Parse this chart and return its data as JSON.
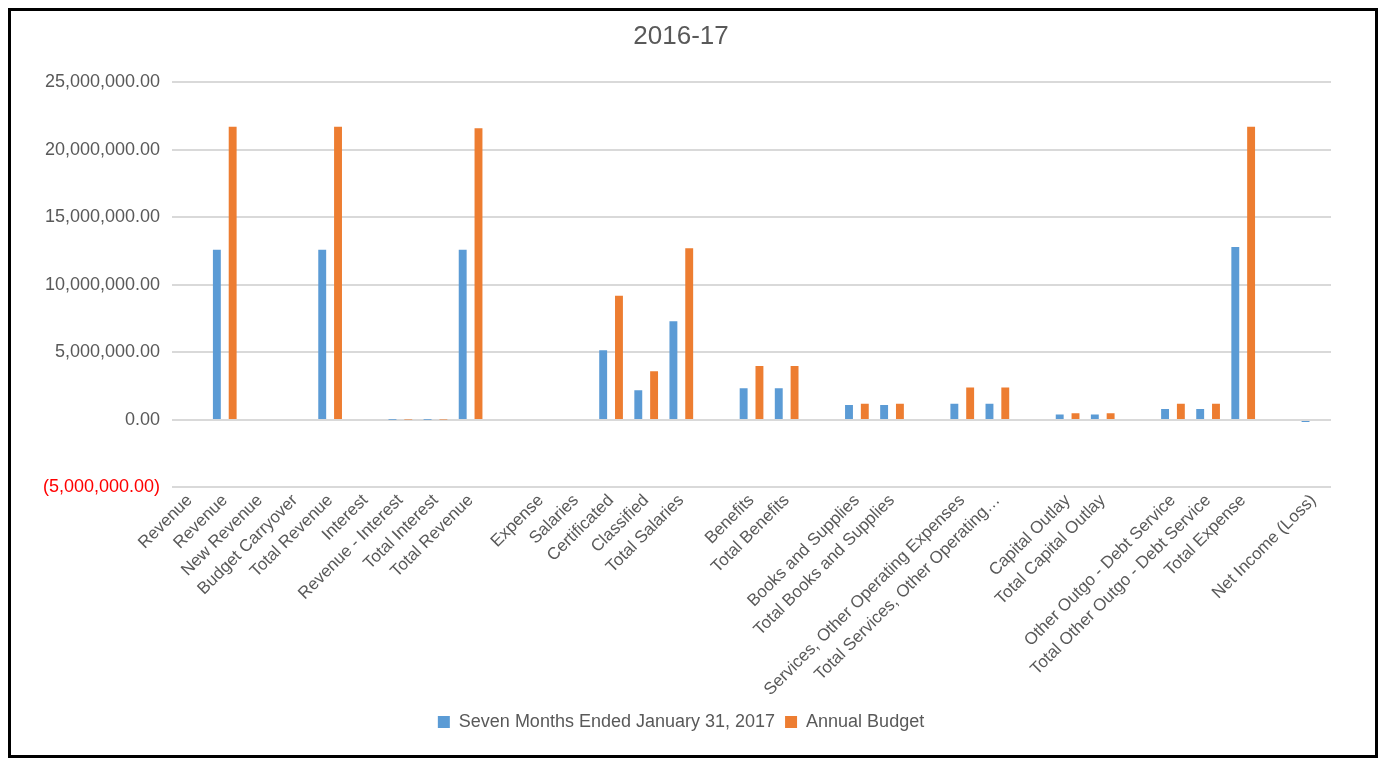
{
  "chart_data": {
    "type": "bar",
    "title": "2016-17",
    "categories": [
      "Revenue",
      "Revenue",
      "New Revenue",
      "Budget Carryover",
      "Total Revenue",
      "Interest",
      "Revenue - Interest",
      "Total Interest",
      "Total Revenue",
      null,
      "Expense",
      "Salaries",
      "Certificated",
      "Classified",
      "Total Salaries",
      null,
      "Benefits",
      "Total Benefits",
      null,
      "Books and Supplies",
      "Total Books and Supplies",
      null,
      "Services, Other Operating Expenses",
      "Total Services, Other Operating…",
      null,
      "Capital Outlay",
      "Total Capital Outlay",
      null,
      "Other Outgo - Debt Service",
      "Total Other Outgo - Debt Service",
      "Total Expense",
      null,
      "Net Income (Loss)"
    ],
    "series": [
      {
        "name": "Seven Months Ended January 31, 2017",
        "color": "#5b9bd5",
        "values": [
          null,
          12600000,
          null,
          null,
          12600000,
          null,
          20000,
          20000,
          12600000,
          null,
          null,
          null,
          5150000,
          2200000,
          7300000,
          null,
          2350000,
          2350000,
          null,
          1100000,
          1100000,
          null,
          1200000,
          1200000,
          null,
          400000,
          400000,
          null,
          800000,
          800000,
          12800000,
          null,
          -150000
        ]
      },
      {
        "name": "Annual Budget",
        "color": "#ed7d31",
        "values": [
          null,
          21700000,
          null,
          null,
          21700000,
          null,
          30000,
          30000,
          21600000,
          null,
          null,
          null,
          9200000,
          3600000,
          12700000,
          null,
          4000000,
          4000000,
          null,
          1200000,
          1200000,
          null,
          2400000,
          2400000,
          null,
          500000,
          500000,
          null,
          1200000,
          1200000,
          21700000,
          null,
          null
        ]
      }
    ],
    "ylim": [
      -5000000,
      25000000
    ],
    "yticks": [
      {
        "value": -5000000,
        "label": "(5,000,000.00)"
      },
      {
        "value": 0,
        "label": "0.00"
      },
      {
        "value": 5000000,
        "label": "5,000,000.00"
      },
      {
        "value": 10000000,
        "label": "10,000,000.00"
      },
      {
        "value": 15000000,
        "label": "15,000,000.00"
      },
      {
        "value": 20000000,
        "label": "20,000,000.00"
      },
      {
        "value": 25000000,
        "label": "25,000,000.00"
      }
    ],
    "grid": "y",
    "legend": "bottom"
  }
}
